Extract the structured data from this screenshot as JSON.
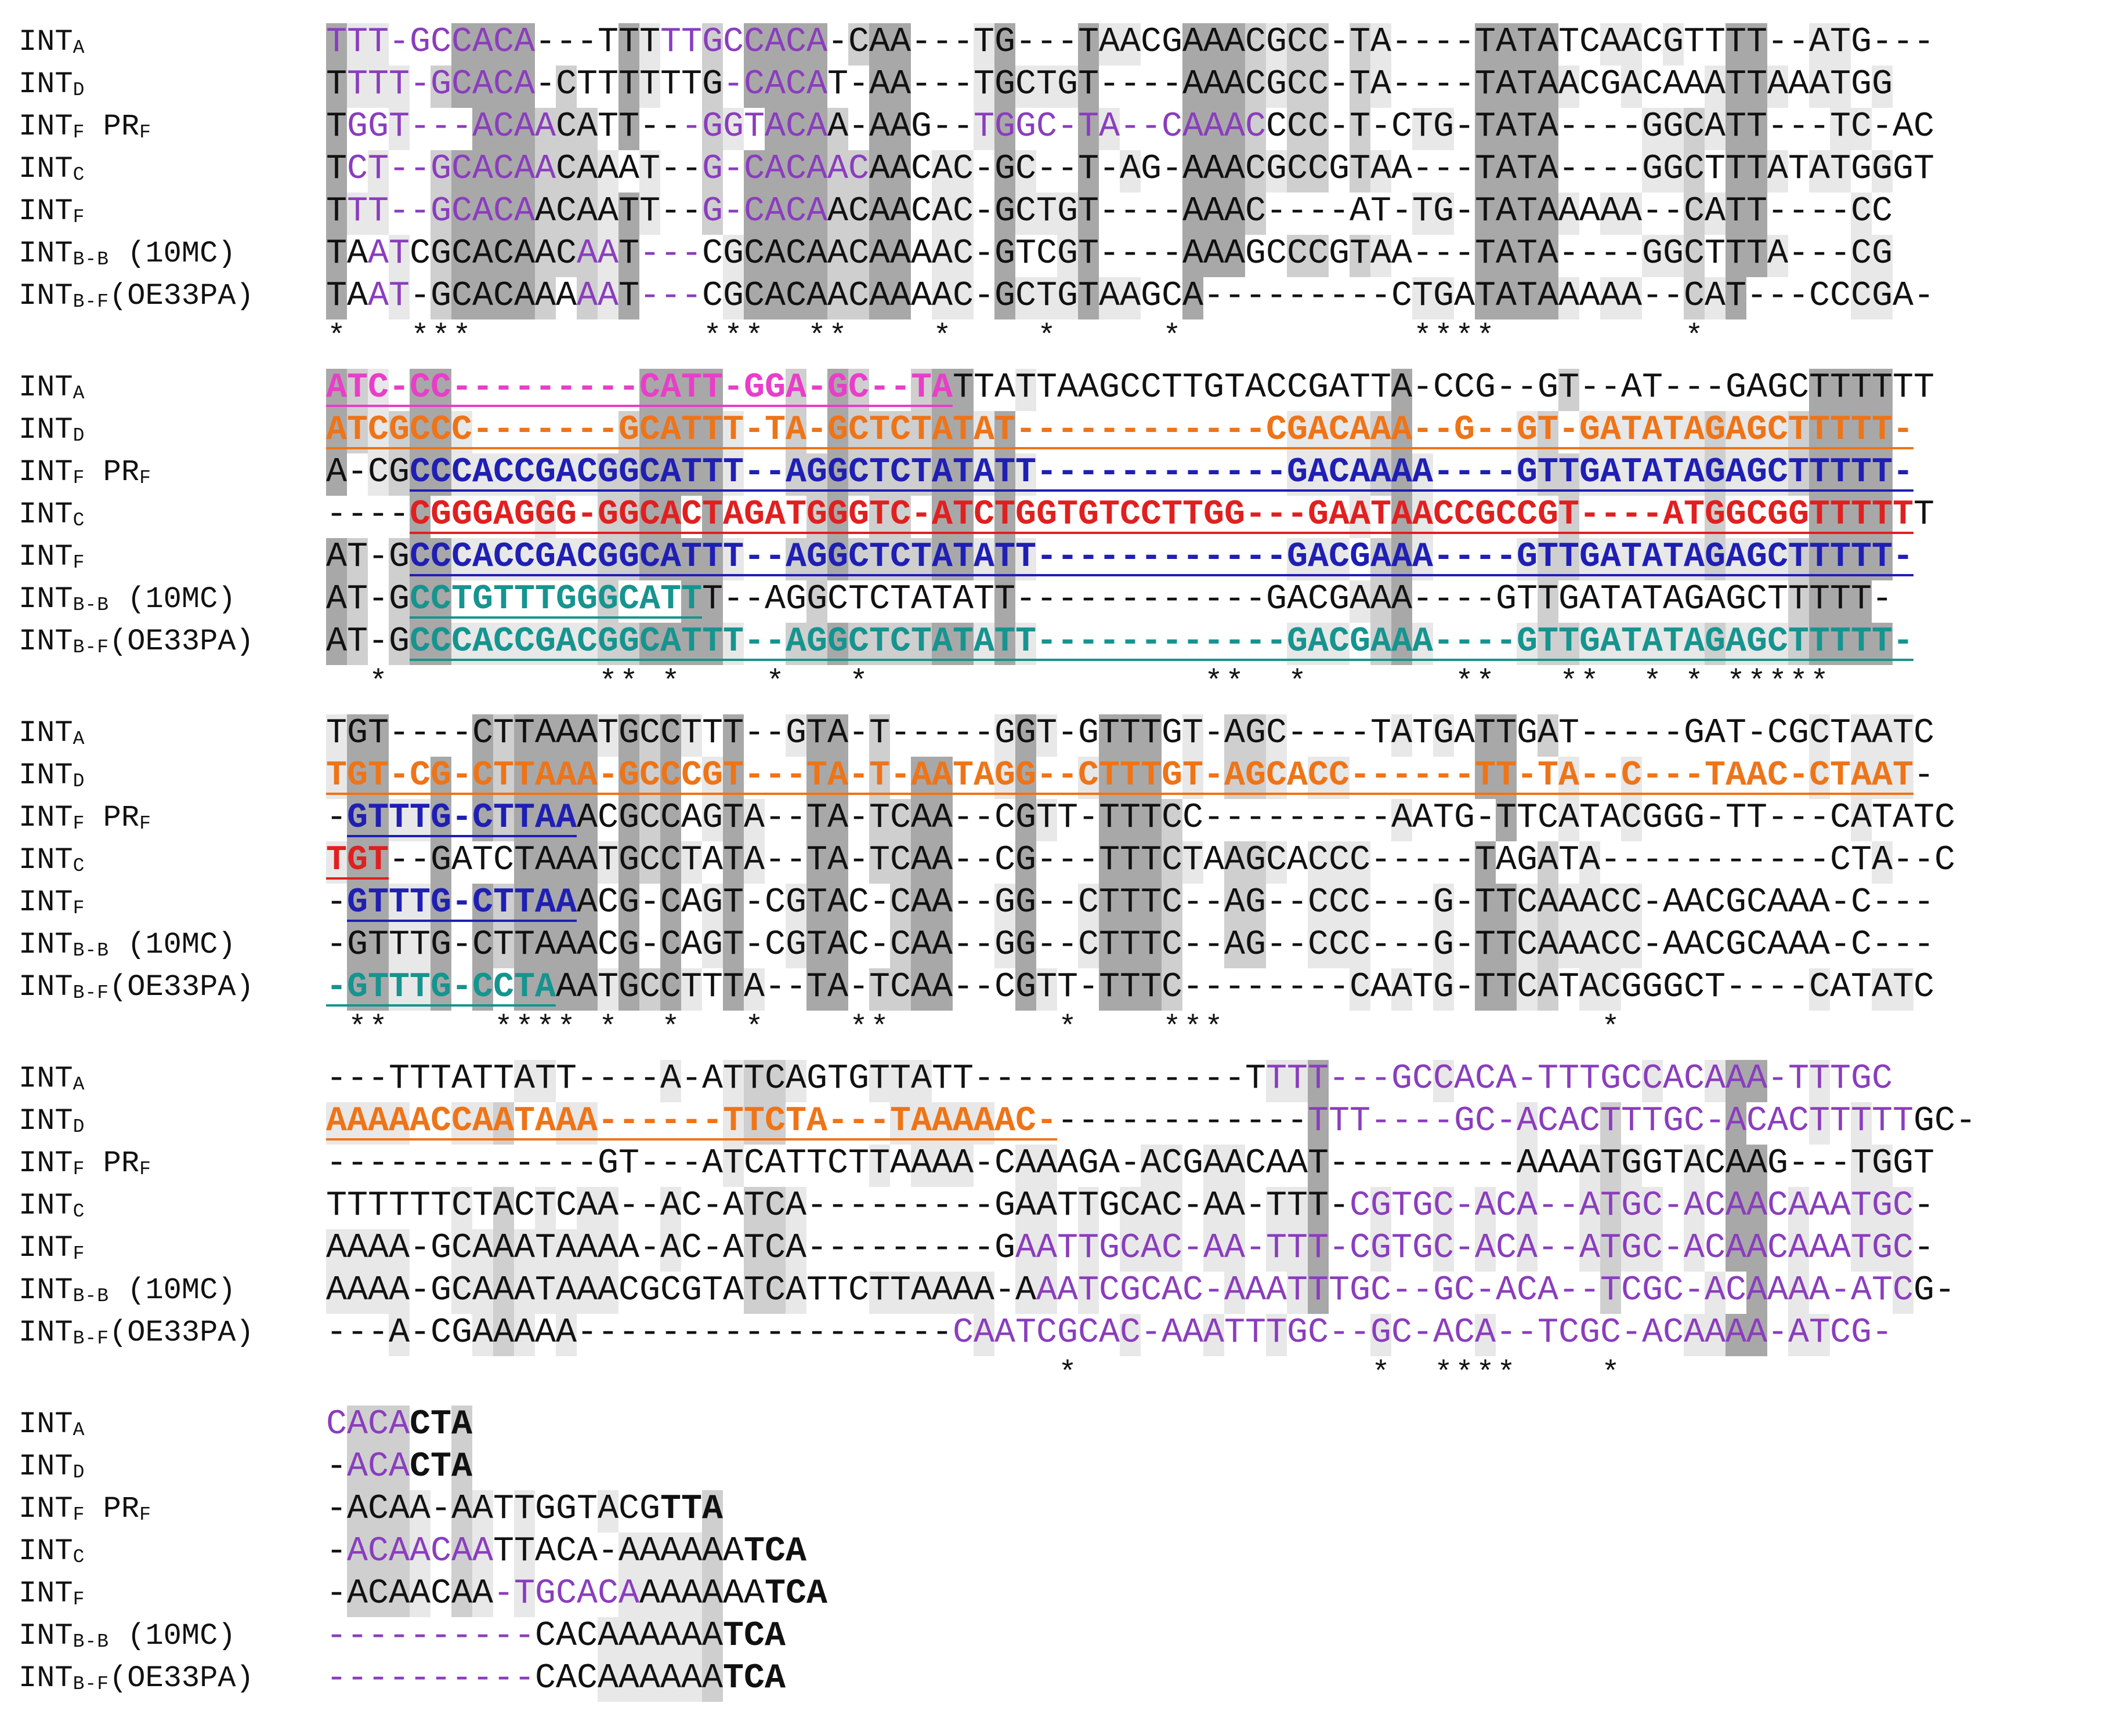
{
  "labels": [
    {
      "base": "INT",
      "sub": "A",
      "suffix": ""
    },
    {
      "base": "INT",
      "sub": "D",
      "suffix": ""
    },
    {
      "base": "INT",
      "sub": "F",
      "suffix": " PR",
      "suffix_sub": "F"
    },
    {
      "base": "INT",
      "sub": "C",
      "suffix": ""
    },
    {
      "base": "INT",
      "sub": "F",
      "suffix": ""
    },
    {
      "base": "INT",
      "sub": "B-B",
      "suffix": " (10MC)"
    },
    {
      "base": "INT",
      "sub": "B-F",
      "suffix": "(OE33PA)"
    }
  ],
  "colors": {
    "purple": "#8a3dbd",
    "magenta": "#e83ec9",
    "orange": "#ee7418",
    "blue": "#1f1fb4",
    "red": "#e02020",
    "teal": "#16948f",
    "black": "#111111"
  },
  "blocks": [
    {
      "rows": [
        "TTT-GCCACA---TTTTTGCCACA-CAA---TG---TAACGAAACGCC-TA----TATATCAACGTTTT--ATG---",
        "TTTT-GCACA-CTTTTTTG-CACAT-AA---TGCTGT----AAACGCC-TA----TATAACGACAAATTAAATGG",
        "TGGT---ACAACATT---GGTACAA-AAG--TGGC-TA--CAAACCCC-T-CTG-TATA----GGCATT---TC-AC",
        "TCT--GCACAACAAAT--G-CACAACAACAC-GC--T-AG-AAACGCCGTAA---TATA----GGCTTTATATGGGT",
        "TTT--GCACAACAATT--G-CACAACAACAC-GCTGT----AAAC----AT-TG-TATAAAAA--CATT----CC",
        "TAATCGCACAACAAT---CGCACAACAAAAC-GTCGT----AAAGCCCGTAA---TATA----GGCTTTA---CG",
        "TAAT-GCACAAAAAT---CGCACAACAAAAC-GCTGTAAGCA---------CTGATATAAAAA--CAT---CCCGA-"
      ],
      "consensus": "*   ***           ***  **    *    *     *           ****         *",
      "colored": [
        [
          {
            "from": 0,
            "to": 10,
            "color": "purple"
          },
          {
            "from": 16,
            "to": 24,
            "color": "purple"
          }
        ],
        [
          {
            "from": 1,
            "to": 10,
            "color": "purple"
          },
          {
            "from": 19,
            "to": 24,
            "color": "purple"
          }
        ],
        [
          {
            "from": 1,
            "to": 11,
            "color": "purple"
          },
          {
            "from": 17,
            "to": 24,
            "color": "purple"
          },
          {
            "from": 31,
            "to": 45,
            "color": "purple"
          }
        ],
        [
          {
            "from": 1,
            "to": 11,
            "color": "purple"
          },
          {
            "from": 18,
            "to": 26,
            "color": "purple"
          }
        ],
        [
          {
            "from": 1,
            "to": 10,
            "color": "purple"
          },
          {
            "from": 18,
            "to": 24,
            "color": "purple"
          }
        ],
        [
          {
            "from": 2,
            "to": 4,
            "color": "purple"
          },
          {
            "from": 12,
            "to": 14,
            "color": "purple"
          },
          {
            "from": 15,
            "to": 18,
            "color": "purple"
          }
        ],
        [
          {
            "from": 2,
            "to": 4,
            "color": "purple"
          },
          {
            "from": 12,
            "to": 14,
            "color": "purple"
          },
          {
            "from": 15,
            "to": 18,
            "color": "purple"
          }
        ]
      ]
    },
    {
      "rows": [
        "ATC-CC---------CATT-GGA-GC--TATTATTAAGCCTTGTACCGATTA-CCG--GT--AT---GAGCTTTTTT",
        "ATCGCCC-------GCATTT-TA-GCTCTATAT------------CGACAAA--G--GT-GATATAGAGCTTTTT-",
        "A-CGCCCACCGACGGCATTT--AGGCTCTATATT------------GACAAAA----GTTGATATAGAGCTTTTT-",
        "----CGGGAGGG-GGCACTAGATGGGTC-ATCTGGTGTCCTTGG---GAATAACCGCCGT----ATGGCGGTTTTTT",
        "AT-GCCCACCGACGGCATTT--AGGCTCTATATT------------GACGAAA----GTTGATATAGAGCTTTTT-",
        "AT-GCCTGTTTGGGCATTT--AGGCTCTATATT------------GACGAAA----GTTGATATAGAGCTTTTT-",
        "AT-GCCCACCGACGGCATTT--AGGCTCTATATT------------GACGAAA----GTTGATATAGAGCTTTTT-"
      ],
      "consensus": "  *          ** *    *   *                **  *       **   **  * * *****",
      "colored": [
        [
          {
            "from": 0,
            "to": 30,
            "color": "magenta"
          }
        ],
        [
          {
            "from": 0,
            "to": 76,
            "color": "orange"
          }
        ],
        [
          {
            "from": 4,
            "to": 76,
            "color": "blue"
          }
        ],
        [
          {
            "from": 4,
            "to": 76,
            "color": "red"
          }
        ],
        [
          {
            "from": 4,
            "to": 76,
            "color": "blue"
          }
        ],
        [
          {
            "from": 4,
            "to": 18,
            "color": "teal"
          }
        ],
        [
          {
            "from": 4,
            "to": 76,
            "color": "teal"
          }
        ]
      ]
    },
    {
      "rows": [
        "TGT----CTTAAATGCCTTT--GTA-T-----GGT-GTTTGT-AGC----TATGATTGAT-----GAT-CGCTAATC",
        "TGT-CG-CTTAAA-GCCCGT---TA-T-AATAGG--CTTTGT-AGCACC------TT-TA--C---TAAC-CTAAT-",
        "-GTTTG-CTTAAACGCCAGTA--TA-TCAA--CGTT-TTTCC---------AATG-TTCATACGGG-TT---CATATC",
        "TGT--GATCTAAATGCCTATA--TA-TCAA--CG---TTTCTAAGCACCC-----TAGATA-----------CTA--C",
        "-GTTTG-CTTAAACG-CAGT-CGTAC-CAA--GG--CTTTC--AG--CCC---G-TTCAAACC-AACGCAAA-C---",
        "-GTTTG-CTTAAACG-CAGT-CGTAC-CAA--GG--CTTTC--AG--CCC---G-TTCAAACC-AACGCAAA-C---",
        "-GTTTG-CCTAAATGCCTTTA--TA-TCAA--CGTT-TTTC--------CAATG-TTCATACGGGCT----CATATC"
      ],
      "consensus": " **     **** *  *   *    **        *    ***                  *",
      "colored": [
        [],
        [
          {
            "from": 0,
            "to": 76,
            "color": "orange"
          }
        ],
        [
          {
            "from": 1,
            "to": 12,
            "color": "blue"
          }
        ],
        [
          {
            "from": 0,
            "to": 3,
            "color": "red"
          }
        ],
        [
          {
            "from": 1,
            "to": 12,
            "color": "blue"
          }
        ],
        [],
        [
          {
            "from": 0,
            "to": 11,
            "color": "teal"
          }
        ]
      ]
    },
    {
      "rows": [
        "---TTTATTATT----A-ATTCAGTGTTATT-------------TTTT---GCCACA-TTTGCCACAAA-TTTGC",
        "AAAAACCAATAAA------TTCTA---TAAAAAC-------------TTT----GC-ACACTTTGC-ACACTTTTTGC-",
        "-------------GT---ATCATTCTTAAAA-CAAAGA-ACGAACAAT---------AAAATGGTACAAG---TGGT",
        "TTTTTTCTACTCAA--AC-ATCA---------GAATTGCAC-AA-TTT-CGTGC-ACA--ATGC-ACAACAAATGC-",
        "AAAA-GCAAATAAAA-AC-ATCA---------GAATTGCAC-AA-TTT-CGTGC-ACA--ATGC-ACAACAAATGC-",
        "AAAA-GCAAATAAACGCGTATCATTCTTAAAA-AAATCGCAC-AAATTTGC--GC-ACA--TCGC-ACAAAA-ATCG-",
        "---A-CGAAAAA------------------CAATCGCAC-AAATTTGC--GC-ACA--TCGC-ACAAAA-ATCG-"
      ],
      "consensus": "                                   *              *  ****    *",
      "colored": [
        [
          {
            "from": 45,
            "to": 76,
            "color": "purple"
          }
        ],
        [
          {
            "from": 0,
            "to": 35,
            "color": "orange"
          },
          {
            "from": 47,
            "to": 76,
            "color": "purple"
          }
        ],
        [],
        [
          {
            "from": 49,
            "to": 76,
            "color": "purple"
          }
        ],
        [
          {
            "from": 33,
            "to": 76,
            "color": "purple"
          }
        ],
        [
          {
            "from": 34,
            "to": 76,
            "color": "purple"
          }
        ],
        [
          {
            "from": 30,
            "to": 76,
            "color": "purple"
          }
        ]
      ]
    },
    {
      "rows": [
        "CACACTA",
        "-ACACTA",
        "-ACAA-AATTGGTACGTTA",
        "-ACAACAATTACA-AAAAAATCA",
        "-ACAACAA-TGCACAAAAAAATCA",
        "----------CACAAAAAATCA",
        "----------CACAAAAAATCA"
      ],
      "consensus": "",
      "colored": [
        [
          {
            "from": 0,
            "to": 4,
            "color": "purple"
          }
        ],
        [
          {
            "from": 1,
            "to": 4,
            "color": "purple"
          }
        ],
        [],
        [
          {
            "from": 1,
            "to": 8,
            "color": "purple"
          }
        ],
        [
          {
            "from": 8,
            "to": 15,
            "color": "purple"
          }
        ],
        [
          {
            "from": 0,
            "to": 10,
            "color": "purple"
          }
        ],
        [
          {
            "from": 0,
            "to": 10,
            "color": "purple"
          }
        ]
      ]
    }
  ]
}
